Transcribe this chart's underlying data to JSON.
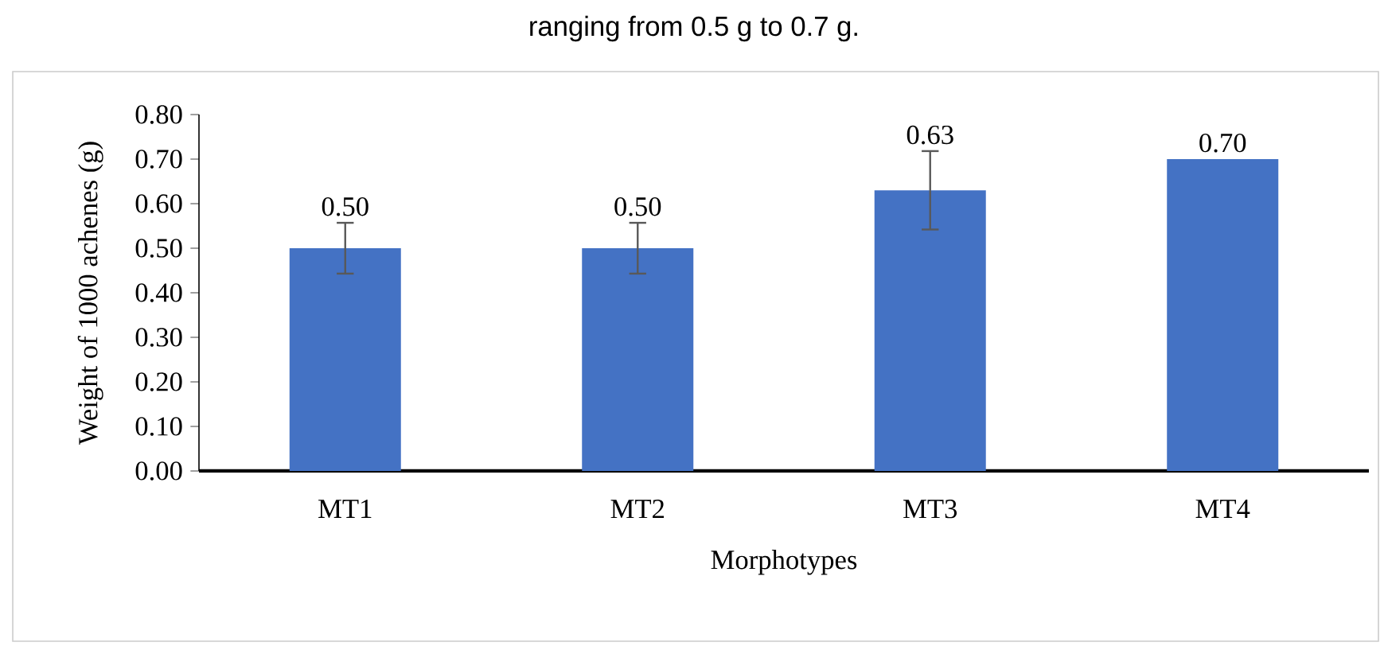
{
  "chart_data": {
    "type": "bar",
    "title": "ranging from 0.5 g to 0.7 g.",
    "xlabel": "Morphotypes",
    "ylabel": "Weight of 1000 achenes (g)",
    "categories": [
      "MT1",
      "MT2",
      "MT3",
      "MT4"
    ],
    "values": [
      0.5,
      0.5,
      0.63,
      0.7
    ],
    "color": "#4472c4",
    "errors": [
      0.057,
      0.057,
      0.088,
      null
    ],
    "value_labels": [
      "0.50",
      "0.50",
      "0.63",
      "0.70"
    ],
    "ylim": [
      0,
      0.8
    ],
    "yticks": [
      {
        "value": 0,
        "label": "0.00"
      },
      {
        "value": 0.1,
        "label": "0.10"
      },
      {
        "value": 0.2,
        "label": "0.20"
      },
      {
        "value": 0.3,
        "label": "0.30"
      },
      {
        "value": 0.4,
        "label": "0.40"
      },
      {
        "value": 0.5,
        "label": "0.50"
      },
      {
        "value": 0.6,
        "label": "0.60"
      },
      {
        "value": 0.7,
        "label": "0.70"
      },
      {
        "value": 0.8,
        "label": "0.80"
      }
    ],
    "grid": false
  }
}
